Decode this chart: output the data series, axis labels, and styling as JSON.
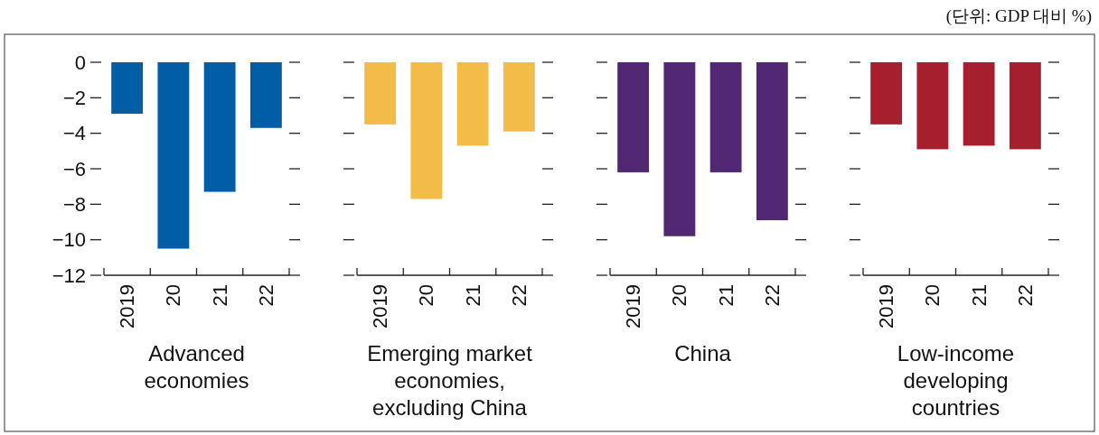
{
  "chart_data": [
    {
      "type": "bar",
      "xlabel": "Advanced economies",
      "categories": [
        "2019",
        "20",
        "21",
        "22"
      ],
      "values": [
        -2.9,
        -10.5,
        -7.3,
        -3.7
      ],
      "color": "#005da6",
      "ylim": [
        -12,
        0
      ],
      "yticks": [
        0,
        -2,
        -4,
        -6,
        -8,
        -10,
        -12
      ]
    },
    {
      "type": "bar",
      "xlabel": "Emerging market economies, excluding China",
      "categories": [
        "2019",
        "20",
        "21",
        "22"
      ],
      "values": [
        -3.5,
        -7.7,
        -4.7,
        -3.9
      ],
      "color": "#f3bc48",
      "ylim": [
        -12,
        0
      ],
      "yticks": [
        0,
        -2,
        -4,
        -6,
        -8,
        -10,
        -12
      ],
      "tick_labels": "x"
    },
    {
      "type": "bar",
      "xlabel": "China",
      "categories": [
        "2019",
        "20",
        "21",
        "22"
      ],
      "values": [
        -6.2,
        -9.8,
        -6.2,
        -8.9
      ],
      "color": "#512773",
      "ylim": [
        -12,
        0
      ],
      "yticks": [
        0,
        -2,
        -4,
        -6,
        -8,
        -10,
        -12
      ],
      "tick_labels": "x"
    },
    {
      "type": "bar",
      "xlabel": "Low-income developing countries",
      "categories": [
        "2019",
        "20",
        "21",
        "22"
      ],
      "values": [
        -3.5,
        -4.9,
        -4.7,
        -4.9
      ],
      "color": "#a51f2f",
      "ylim": [
        -12,
        0
      ],
      "yticks": [
        0,
        -2,
        -4,
        -6,
        -8,
        -10,
        -12
      ],
      "tick_labels": "x",
      "annotations": [
        "(단위: GDP 대비 %)"
      ]
    }
  ]
}
